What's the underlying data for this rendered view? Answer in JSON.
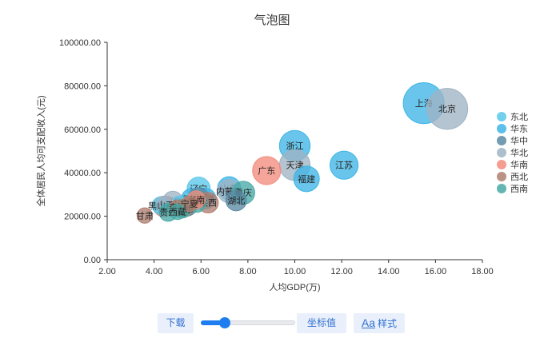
{
  "chart_data": {
    "type": "scatter",
    "title": "气泡图",
    "xlabel": "人均GDP(万)",
    "ylabel": "全体居民人均可支配收入(元)",
    "xlim": [
      2,
      18
    ],
    "ylim": [
      0,
      100000
    ],
    "xticks": [
      "2.00",
      "4.00",
      "6.00",
      "8.00",
      "10.00",
      "12.00",
      "14.00",
      "16.00",
      "18.00"
    ],
    "yticks": [
      "0.00",
      "20000.00",
      "40000.00",
      "60000.00",
      "80000.00",
      "100000.00"
    ],
    "legend_position": "right",
    "series": [
      {
        "name": "东北",
        "color": "#5ac8ea",
        "points": [
          {
            "label": "辽宁",
            "x": 5.9,
            "y": 32700,
            "size": 9
          },
          {
            "label": "吉林",
            "x": 5.1,
            "y": 25100,
            "size": 7
          },
          {
            "label": "黑龙江",
            "x": 4.3,
            "y": 24900,
            "size": 7
          }
        ]
      },
      {
        "name": "华东",
        "color": "#3fb5e6",
        "points": [
          {
            "label": "上海",
            "x": 15.5,
            "y": 72000,
            "size": 16
          },
          {
            "label": "江苏",
            "x": 12.1,
            "y": 43500,
            "size": 11
          },
          {
            "label": "浙江",
            "x": 10.0,
            "y": 52400,
            "size": 12
          },
          {
            "label": "福建",
            "x": 10.5,
            "y": 37200,
            "size": 10
          },
          {
            "label": "山东",
            "x": 7.2,
            "y": 32900,
            "size": 9
          },
          {
            "label": "安徽",
            "x": 6.2,
            "y": 28100,
            "size": 8
          },
          {
            "label": "江西",
            "x": 5.6,
            "y": 28000,
            "size": 8
          }
        ]
      },
      {
        "name": "华中",
        "color": "#5b8aa3",
        "points": [
          {
            "label": "湖北",
            "x": 7.5,
            "y": 27200,
            "size": 8
          },
          {
            "label": "湖南",
            "x": 5.9,
            "y": 28500,
            "size": 8
          },
          {
            "label": "河南",
            "x": 5.4,
            "y": 24800,
            "size": 8
          }
        ]
      },
      {
        "name": "华北",
        "color": "#9fb3c3",
        "points": [
          {
            "label": "北京",
            "x": 16.5,
            "y": 69400,
            "size": 16
          },
          {
            "label": "天津",
            "x": 10.0,
            "y": 43500,
            "size": 12
          },
          {
            "label": "河北",
            "x": 4.8,
            "y": 26800,
            "size": 8
          },
          {
            "label": "山西",
            "x": 4.5,
            "y": 25200,
            "size": 7
          },
          {
            "label": "内蒙古",
            "x": 7.2,
            "y": 31500,
            "size": 9
          }
        ]
      },
      {
        "name": "华南",
        "color": "#f28c7c",
        "points": [
          {
            "label": "广东",
            "x": 8.8,
            "y": 41000,
            "size": 11
          },
          {
            "label": "广西",
            "x": 4.4,
            "y": 24500,
            "size": 8
          },
          {
            "label": "海南",
            "x": 5.8,
            "y": 27600,
            "size": 7
          }
        ]
      },
      {
        "name": "西北",
        "color": "#b07f70",
        "points": [
          {
            "label": "陕西",
            "x": 6.3,
            "y": 26200,
            "size": 8
          },
          {
            "label": "甘肃",
            "x": 3.6,
            "y": 20300,
            "size": 6
          },
          {
            "label": "青海",
            "x": 5.0,
            "y": 24000,
            "size": 6
          },
          {
            "label": "宁夏",
            "x": 5.5,
            "y": 25700,
            "size": 6
          },
          {
            "label": "新疆",
            "x": 5.3,
            "y": 23800,
            "size": 7
          }
        ]
      },
      {
        "name": "西南",
        "color": "#48a9a6",
        "points": [
          {
            "label": "重庆",
            "x": 7.8,
            "y": 30800,
            "size": 9
          },
          {
            "label": "四川",
            "x": 5.8,
            "y": 26500,
            "size": 8
          },
          {
            "label": "贵州",
            "x": 4.6,
            "y": 21800,
            "size": 7
          },
          {
            "label": "云南",
            "x": 5.2,
            "y": 23300,
            "size": 7
          },
          {
            "label": "西藏",
            "x": 5.0,
            "y": 22000,
            "size": 6
          }
        ]
      }
    ]
  },
  "toolbar": {
    "download_label": "下载",
    "slider_value": 0.25,
    "coord_label": "坐标值",
    "style_icon": "Aa",
    "style_label": "样式"
  }
}
